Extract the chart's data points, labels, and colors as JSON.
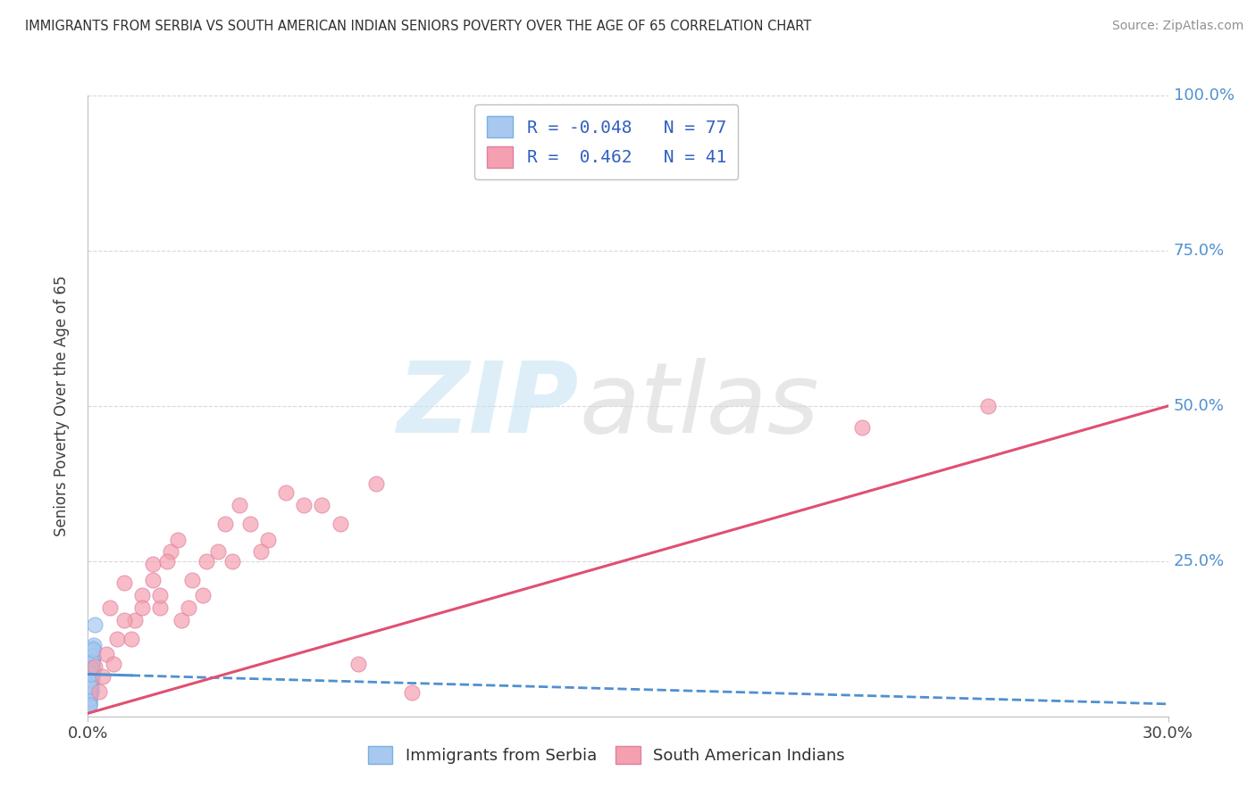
{
  "title": "IMMIGRANTS FROM SERBIA VS SOUTH AMERICAN INDIAN SENIORS POVERTY OVER THE AGE OF 65 CORRELATION CHART",
  "source": "Source: ZipAtlas.com",
  "ylabel": "Seniors Poverty Over the Age of 65",
  "xlim": [
    0.0,
    0.3
  ],
  "ylim": [
    0.0,
    1.0
  ],
  "ytick_positions": [
    0.0,
    0.25,
    0.5,
    0.75,
    1.0
  ],
  "ytick_labels_right": [
    "",
    "25.0%",
    "50.0%",
    "75.0%",
    "100.0%"
  ],
  "serbia_R": -0.048,
  "serbia_N": 77,
  "india_R": 0.462,
  "india_N": 41,
  "serbia_color": "#a8c8f0",
  "india_color": "#f4a0b0",
  "serbia_trend_color": "#5090d0",
  "india_trend_color": "#e05070",
  "background_color": "#ffffff",
  "serbia_trend_y0": 0.068,
  "serbia_trend_y1": 0.02,
  "india_trend_y0": 0.005,
  "india_trend_y1": 0.5,
  "serbia_points_x": [
    0.0005,
    0.001,
    0.0008,
    0.0012,
    0.0015,
    0.0006,
    0.0009,
    0.0011,
    0.0007,
    0.0004,
    0.0013,
    0.0008,
    0.001,
    0.0006,
    0.0005,
    0.0009,
    0.0014,
    0.0007,
    0.0008,
    0.0011,
    0.0004,
    0.0012,
    0.0006,
    0.0009,
    0.001,
    0.0007,
    0.0005,
    0.0003,
    0.0008,
    0.0013,
    0.0006,
    0.001,
    0.0004,
    0.0011,
    0.0007,
    0.0006,
    0.0016,
    0.0009,
    0.0003,
    0.0005,
    0.0008,
    0.0011,
    0.0009,
    0.0006,
    0.0004,
    0.0012,
    0.0007,
    0.0005,
    0.001,
    0.0011,
    0.0003,
    0.0007,
    0.0005,
    0.0009,
    0.0012,
    0.0003,
    0.0005,
    0.0007,
    0.0011,
    0.0009,
    0.0005,
    0.0003,
    0.0007,
    0.0013,
    0.0005,
    0.0009,
    0.0003,
    0.0007,
    0.0011,
    0.0018,
    0.0005,
    0.0009,
    0.0003,
    0.0007,
    0.0013,
    0.0005,
    0.0009
  ],
  "serbia_points_y": [
    0.06,
    0.075,
    0.045,
    0.065,
    0.11,
    0.035,
    0.07,
    0.085,
    0.055,
    0.045,
    0.095,
    0.065,
    0.078,
    0.052,
    0.032,
    0.072,
    0.105,
    0.042,
    0.062,
    0.088,
    0.028,
    0.078,
    0.052,
    0.072,
    0.04,
    0.062,
    0.088,
    0.022,
    0.052,
    0.095,
    0.04,
    0.068,
    0.03,
    0.078,
    0.052,
    0.06,
    0.115,
    0.04,
    0.02,
    0.052,
    0.07,
    0.088,
    0.062,
    0.04,
    0.03,
    0.078,
    0.052,
    0.04,
    0.068,
    0.06,
    0.022,
    0.052,
    0.04,
    0.062,
    0.088,
    0.028,
    0.038,
    0.06,
    0.078,
    0.052,
    0.038,
    0.018,
    0.06,
    0.098,
    0.048,
    0.068,
    0.028,
    0.06,
    0.088,
    0.148,
    0.038,
    0.078,
    0.018,
    0.058,
    0.108,
    0.048,
    0.068
  ],
  "india_points_x": [
    0.002,
    0.004,
    0.006,
    0.008,
    0.01,
    0.013,
    0.015,
    0.018,
    0.02,
    0.023,
    0.026,
    0.029,
    0.032,
    0.036,
    0.04,
    0.045,
    0.05,
    0.06,
    0.07,
    0.08,
    0.003,
    0.005,
    0.007,
    0.01,
    0.012,
    0.015,
    0.018,
    0.02,
    0.022,
    0.025,
    0.028,
    0.033,
    0.038,
    0.042,
    0.048,
    0.055,
    0.065,
    0.075,
    0.09,
    0.215,
    0.25
  ],
  "india_points_y": [
    0.08,
    0.065,
    0.175,
    0.125,
    0.215,
    0.155,
    0.195,
    0.245,
    0.175,
    0.265,
    0.155,
    0.22,
    0.195,
    0.265,
    0.25,
    0.31,
    0.285,
    0.34,
    0.31,
    0.375,
    0.04,
    0.1,
    0.085,
    0.155,
    0.125,
    0.175,
    0.22,
    0.195,
    0.25,
    0.285,
    0.175,
    0.25,
    0.31,
    0.34,
    0.265,
    0.36,
    0.34,
    0.085,
    0.038,
    0.465,
    0.5
  ]
}
